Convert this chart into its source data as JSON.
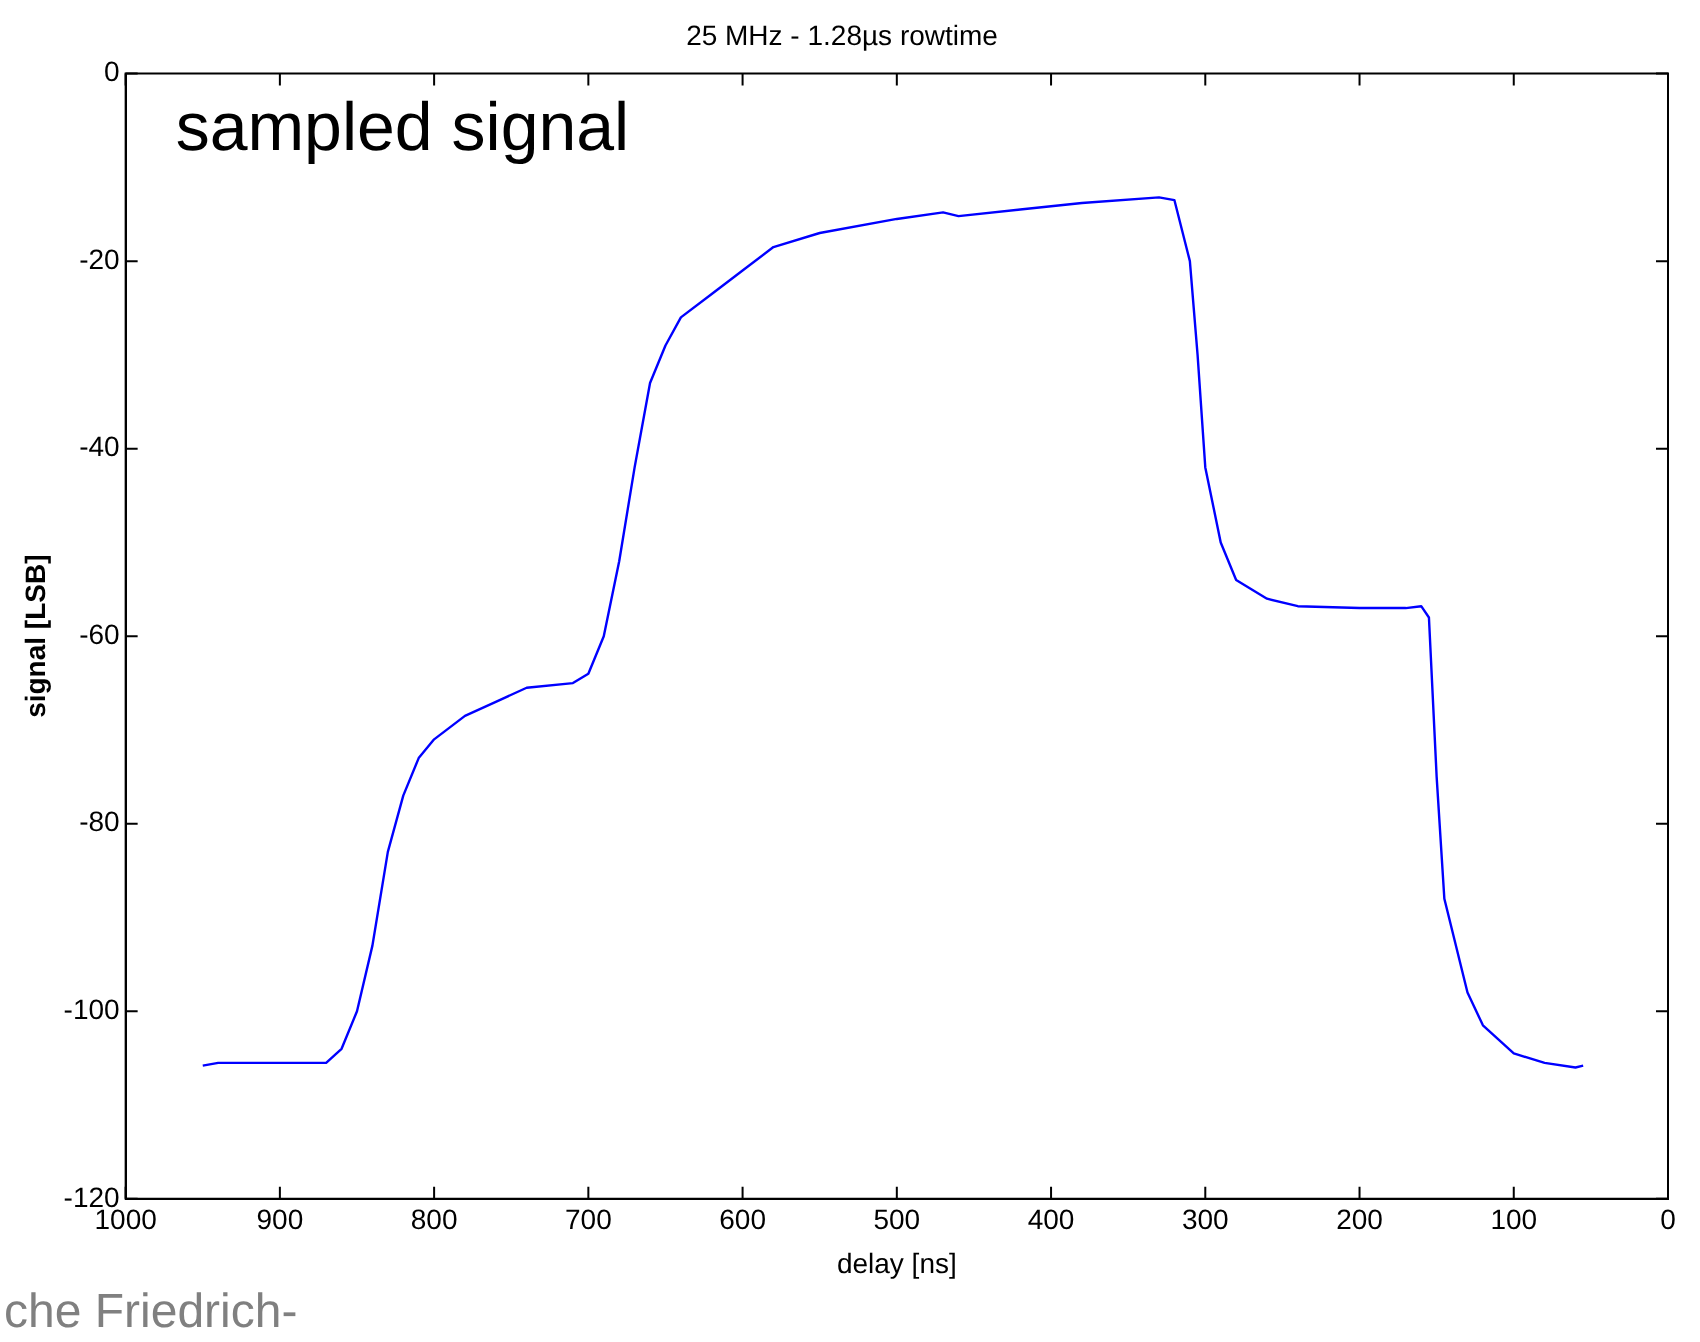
{
  "chart_data": {
    "type": "line",
    "title": "25 MHz - 1.28µs rowtime",
    "xlabel": "delay [ns]",
    "ylabel": "signal [LSB]",
    "annotations": [
      "sampled signal",
      "che Friedrich-"
    ],
    "x": [
      950,
      940,
      900,
      870,
      860,
      850,
      840,
      830,
      820,
      810,
      800,
      780,
      760,
      740,
      710,
      700,
      690,
      680,
      670,
      660,
      650,
      640,
      620,
      600,
      580,
      550,
      500,
      470,
      460,
      420,
      380,
      330,
      320,
      310,
      305,
      300,
      290,
      280,
      260,
      240,
      200,
      170,
      160,
      155,
      150,
      145,
      130,
      120,
      100,
      80,
      60,
      55
    ],
    "series": [
      {
        "color": "#0000ff",
        "values": [
          -105.8,
          -105.5,
          -105.5,
          -105.5,
          -104,
          -100,
          -93,
          -83,
          -77,
          -73,
          -71,
          -68.5,
          -67,
          -65.5,
          -65,
          -64,
          -60,
          -52,
          -42,
          -33,
          -29,
          -26,
          -23.5,
          -21,
          -18.5,
          -17,
          -15.5,
          -14.8,
          -15.2,
          -14.5,
          -13.8,
          -13.2,
          -13.5,
          -20,
          -30,
          -42,
          -50,
          -54,
          -56,
          -56.8,
          -57,
          -57,
          -56.8,
          -58,
          -75,
          -88,
          -98,
          -101.5,
          -104.5,
          -105.5,
          -106,
          -105.8
        ]
      }
    ],
    "xlim": [
      1000,
      0
    ],
    "xticks": [
      1000,
      900,
      800,
      700,
      600,
      500,
      400,
      300,
      200,
      100,
      0
    ],
    "ylim": [
      -120,
      0
    ],
    "yticks": [
      -120,
      -100,
      -80,
      -60,
      -40,
      -20,
      0
    ],
    "grid": false,
    "legend": false,
    "marker": "none",
    "line_style": "solid"
  }
}
